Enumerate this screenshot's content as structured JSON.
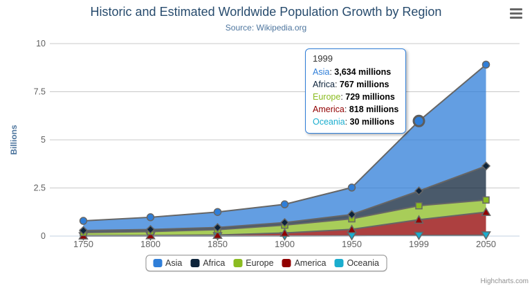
{
  "chart_data": {
    "type": "area",
    "stacking": "normal",
    "title": "Historic and Estimated Worldwide Population Growth by Region",
    "subtitle": "Source: Wikipedia.org",
    "categories": [
      "1750",
      "1800",
      "1850",
      "1900",
      "1950",
      "1999",
      "2050"
    ],
    "xlabel": "",
    "ylabel": "Billions",
    "ylim": [
      0,
      10
    ],
    "yticks": [
      "0",
      "2.5",
      "5",
      "7.5",
      "10"
    ],
    "grid": true,
    "legend_position": "bottom",
    "values_unit": "millions",
    "series": [
      {
        "name": "Asia",
        "color": "#2f7ed8",
        "marker": "circle",
        "values": [
          502,
          635,
          809,
          947,
          1402,
          3634,
          5268
        ]
      },
      {
        "name": "Africa",
        "color": "#0d233a",
        "marker": "diamond",
        "values": [
          106,
          107,
          111,
          133,
          221,
          767,
          1766
        ]
      },
      {
        "name": "Europe",
        "color": "#8bbc21",
        "marker": "square",
        "values": [
          163,
          203,
          276,
          408,
          547,
          729,
          628
        ]
      },
      {
        "name": "America",
        "color": "#910000",
        "marker": "triangle",
        "values": [
          18,
          31,
          54,
          156,
          339,
          818,
          1201
        ]
      },
      {
        "name": "Oceania",
        "color": "#1aadce",
        "marker": "triangle-down",
        "values": [
          2,
          2,
          2,
          6,
          13,
          30,
          46
        ]
      }
    ]
  },
  "tooltip": {
    "header": "1999",
    "suffix": "millions",
    "hovered_series": "Asia",
    "rows": [
      {
        "series": "Asia",
        "value": "3,634",
        "color": "#2f7ed8"
      },
      {
        "series": "Africa",
        "value": "767",
        "color": "#0d233a"
      },
      {
        "series": "Europe",
        "value": "729",
        "color": "#8bbc21"
      },
      {
        "series": "America",
        "value": "818",
        "color": "#910000"
      },
      {
        "series": "Oceania",
        "value": "30",
        "color": "#1aadce"
      }
    ]
  },
  "credits": {
    "label": "Highcharts.com"
  },
  "colors": {
    "background": "#ffffff",
    "title": "#274b6d",
    "subtitle": "#4d759e",
    "axis_label": "#606060",
    "axis_title": "#4d759e",
    "grid": "#c8c8c8",
    "axis_line": "#c0d0e0",
    "series_line": "#666666",
    "legend_border": "#909090",
    "legend_text": "#333333",
    "tooltip_border": "#2f7ed8",
    "credits": "#909090",
    "context_menu_icon": "#666666"
  }
}
